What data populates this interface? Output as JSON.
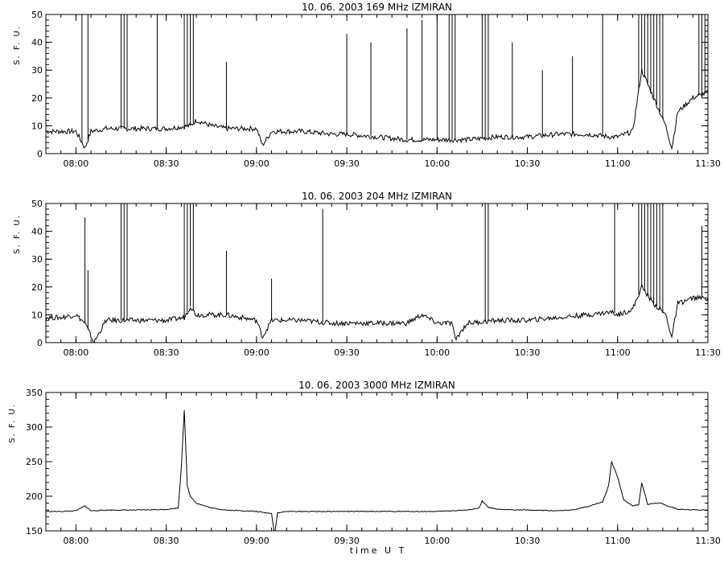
{
  "x_axis_label": "time  U T",
  "chart_data": [
    {
      "type": "line",
      "title": "10.  06.  2003    169 MHz    IZMIRAN",
      "xlabel": "",
      "ylabel": "S. F. U.",
      "xlim": [
        "07:50",
        "11:30"
      ],
      "ylim": [
        0,
        50
      ],
      "xticks": [
        "08:00",
        "08:30",
        "09:00",
        "09:30",
        "10:00",
        "10:30",
        "11:00",
        "11:30"
      ],
      "yticks": [
        0,
        10,
        20,
        30,
        40,
        50
      ],
      "grid": false,
      "series": [
        {
          "x": [
            "07:50",
            "07:55",
            "08:00",
            "08:03",
            "08:05",
            "08:10",
            "08:15",
            "08:20",
            "08:30",
            "08:38",
            "08:40",
            "08:45",
            "08:50",
            "09:00",
            "09:02",
            "09:05",
            "09:15",
            "09:25",
            "09:30",
            "09:40",
            "09:50",
            "10:00",
            "10:05",
            "10:10",
            "10:20",
            "10:30",
            "10:40",
            "10:50",
            "10:58",
            "11:00",
            "11:05",
            "11:08",
            "11:12",
            "11:16",
            "11:18",
            "11:20",
            "11:25",
            "11:30"
          ],
          "values": [
            8,
            8,
            8,
            2,
            8,
            9,
            9,
            9,
            9,
            10,
            12,
            10,
            9,
            9,
            3,
            8,
            8,
            7,
            7,
            6,
            5,
            5,
            5,
            5,
            6,
            6,
            7,
            7,
            6,
            6,
            8,
            30,
            20,
            10,
            2,
            15,
            20,
            22
          ]
        }
      ],
      "spikes": {
        "x": [
          "08:02",
          "08:04",
          "08:15",
          "08:16",
          "08:17",
          "08:27",
          "08:36",
          "08:37",
          "08:38",
          "08:39",
          "08:50",
          "09:30",
          "09:38",
          "09:50",
          "09:55",
          "10:00",
          "10:04",
          "10:05",
          "10:06",
          "10:15",
          "10:16",
          "10:17",
          "10:25",
          "10:35",
          "10:45",
          "10:55",
          "11:07",
          "11:08",
          "11:09",
          "11:10",
          "11:11",
          "11:12",
          "11:13",
          "11:14",
          "11:15",
          "11:27",
          "11:28",
          "11:29"
        ],
        "values": [
          50,
          50,
          50,
          50,
          50,
          50,
          50,
          50,
          50,
          50,
          33,
          43,
          40,
          45,
          48,
          50,
          50,
          50,
          50,
          50,
          50,
          50,
          40,
          30,
          35,
          50,
          50,
          50,
          50,
          50,
          50,
          50,
          50,
          50,
          50,
          50,
          50,
          50
        ]
      }
    },
    {
      "type": "line",
      "title": "10.  06.  2003    204 MHz    IZMIRAN",
      "xlabel": "",
      "ylabel": "S. F. U.",
      "xlim": [
        "07:50",
        "11:30"
      ],
      "ylim": [
        0,
        50
      ],
      "xticks": [
        "08:00",
        "08:30",
        "09:00",
        "09:30",
        "10:00",
        "10:30",
        "11:00",
        "11:30"
      ],
      "yticks": [
        0,
        10,
        20,
        30,
        40,
        50
      ],
      "grid": false,
      "series": [
        {
          "x": [
            "07:50",
            "07:55",
            "08:00",
            "08:03",
            "08:06",
            "08:10",
            "08:15",
            "08:20",
            "08:30",
            "08:36",
            "08:38",
            "08:40",
            "08:45",
            "08:50",
            "09:00",
            "09:02",
            "09:05",
            "09:15",
            "09:25",
            "09:30",
            "09:40",
            "09:50",
            "09:55",
            "10:00",
            "10:05",
            "10:06",
            "10:10",
            "10:20",
            "10:30",
            "10:40",
            "10:50",
            "10:58",
            "11:00",
            "11:05",
            "11:08",
            "11:12",
            "11:16",
            "11:18",
            "11:20",
            "11:25",
            "11:30"
          ],
          "values": [
            9,
            9,
            10,
            7,
            0,
            8,
            8,
            8,
            8,
            9,
            13,
            10,
            10,
            10,
            8,
            2,
            8,
            8,
            7,
            7,
            7,
            7,
            10,
            7,
            7,
            1,
            7,
            8,
            8,
            9,
            10,
            11,
            10,
            12,
            20,
            14,
            10,
            2,
            14,
            16,
            16
          ]
        }
      ],
      "spikes": {
        "x": [
          "08:03",
          "08:04",
          "08:15",
          "08:16",
          "08:17",
          "08:36",
          "08:37",
          "08:38",
          "08:39",
          "08:50",
          "09:05",
          "09:22",
          "10:16",
          "10:17",
          "10:59",
          "11:07",
          "11:08",
          "11:09",
          "11:10",
          "11:11",
          "11:12",
          "11:13",
          "11:14",
          "11:15",
          "11:28"
        ],
        "values": [
          45,
          26,
          50,
          50,
          50,
          50,
          50,
          50,
          50,
          33,
          23,
          48,
          50,
          50,
          50,
          50,
          50,
          50,
          50,
          50,
          50,
          50,
          50,
          50,
          42
        ]
      }
    },
    {
      "type": "line",
      "title": "10.  06.  2003     3000 MHz    IZMIRAN",
      "xlabel": "time  U T",
      "ylabel": "S. F. U.",
      "xlim": [
        "07:50",
        "11:30"
      ],
      "ylim": [
        150,
        350
      ],
      "xticks": [
        "08:00",
        "08:30",
        "09:00",
        "09:30",
        "10:00",
        "10:30",
        "11:00",
        "11:30"
      ],
      "yticks": [
        150,
        200,
        250,
        300,
        350
      ],
      "grid": false,
      "series": [
        {
          "x": [
            "07:50",
            "07:55",
            "08:00",
            "08:03",
            "08:05",
            "08:10",
            "08:20",
            "08:30",
            "08:34",
            "08:35",
            "08:36",
            "08:37",
            "08:38",
            "08:40",
            "08:45",
            "08:50",
            "09:00",
            "09:05",
            "09:06",
            "09:07",
            "09:10",
            "09:20",
            "09:30",
            "09:40",
            "09:50",
            "10:00",
            "10:10",
            "10:14",
            "10:15",
            "10:17",
            "10:20",
            "10:30",
            "10:40",
            "10:45",
            "10:50",
            "10:55",
            "10:57",
            "10:58",
            "11:00",
            "11:02",
            "11:05",
            "11:07",
            "11:08",
            "11:10",
            "11:12",
            "11:14",
            "11:20",
            "11:30"
          ],
          "values": [
            178,
            178,
            179,
            186,
            179,
            180,
            180,
            181,
            183,
            240,
            325,
            215,
            200,
            190,
            183,
            180,
            178,
            175,
            145,
            176,
            178,
            178,
            178,
            178,
            178,
            178,
            180,
            183,
            193,
            184,
            181,
            180,
            179,
            180,
            185,
            192,
            215,
            250,
            228,
            195,
            186,
            188,
            220,
            188,
            190,
            190,
            181,
            180
          ]
        }
      ]
    }
  ]
}
